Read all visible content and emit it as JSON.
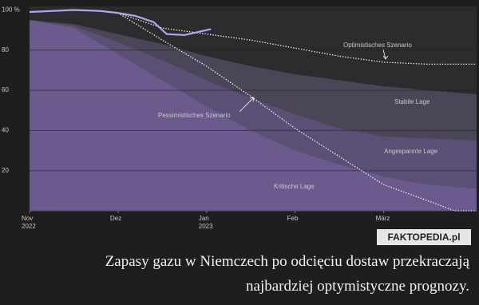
{
  "chart_data": {
    "type": "line",
    "ylim": [
      0,
      100
    ],
    "yticks": [
      20,
      40,
      60,
      80,
      {
        "value": 100,
        "label": "100 %"
      }
    ],
    "xlim": [
      0,
      5.05
    ],
    "xticks": [
      {
        "value": 0,
        "label": "Nov 2022"
      },
      {
        "value": 1,
        "label": "Dez"
      },
      {
        "value": 2,
        "label": "Jan 2023"
      },
      {
        "value": 3,
        "label": "Feb"
      },
      {
        "value": 4,
        "label": "März"
      }
    ],
    "grid": true,
    "series": [
      {
        "name": "Stabile Lage",
        "style": "area",
        "color": "#4a4557",
        "x": [
          0,
          0.5,
          1,
          1.5,
          2,
          2.5,
          3,
          3.5,
          4,
          4.5,
          5.05
        ],
        "values": [
          95,
          93,
          88,
          83,
          77,
          72,
          68,
          65,
          62,
          60,
          58
        ]
      },
      {
        "name": "Angespannte Lage",
        "style": "area",
        "color": "#5c4f76",
        "x": [
          0,
          0.5,
          1,
          1.5,
          2,
          2.5,
          3,
          3.5,
          4,
          4.5,
          5.05
        ],
        "values": [
          95,
          92,
          84,
          75,
          65,
          56,
          48,
          41,
          37,
          36,
          35
        ]
      },
      {
        "name": "Kritische Lage",
        "style": "area",
        "color": "#6a5a8d",
        "x": [
          0,
          0.5,
          1,
          1.5,
          2,
          2.5,
          3,
          3.5,
          4,
          4.5,
          5.05
        ],
        "values": [
          95,
          91,
          78,
          65,
          52,
          40,
          30,
          23,
          17,
          13,
          11
        ]
      },
      {
        "name": "Optimistisches Szenario",
        "style": "dotted",
        "color": "#ffffff",
        "x": [
          1,
          1.5,
          2,
          2.5,
          3,
          3.5,
          4,
          4.5,
          5.05
        ],
        "values": [
          98.5,
          91,
          88,
          85,
          81,
          77,
          74,
          73,
          73
        ]
      },
      {
        "name": "Pessimistisches Szenario",
        "style": "dotted",
        "color": "#ffffff",
        "x": [
          1,
          1.5,
          2,
          2.5,
          3,
          3.5,
          4,
          4.5,
          4.8,
          5.05
        ],
        "values": [
          98.5,
          85,
          72,
          57,
          41,
          27,
          13,
          5,
          0,
          0
        ]
      },
      {
        "style": "solid",
        "color": "#b9a2f0",
        "x": [
          0,
          0.25,
          0.5,
          0.8,
          1,
          1.2,
          1.4,
          1.55,
          1.75,
          1.9,
          2.05
        ],
        "values": [
          99,
          99.5,
          100,
          99.5,
          98.5,
          97,
          94,
          88,
          87.5,
          89,
          90.5
        ]
      }
    ],
    "annotations": [
      "Optimistisches Szenario",
      "Pessimistisches Szenario",
      "Stabile Lage",
      "Angespannte Lage",
      "Kritische Lage"
    ]
  },
  "watermark": "FAKTOPEDIA.pl",
  "caption": [
    "Zapasy gazu w Niemczech po odcięciu dostaw przekraczają",
    "najbardziej optymistyczne prognozy."
  ]
}
